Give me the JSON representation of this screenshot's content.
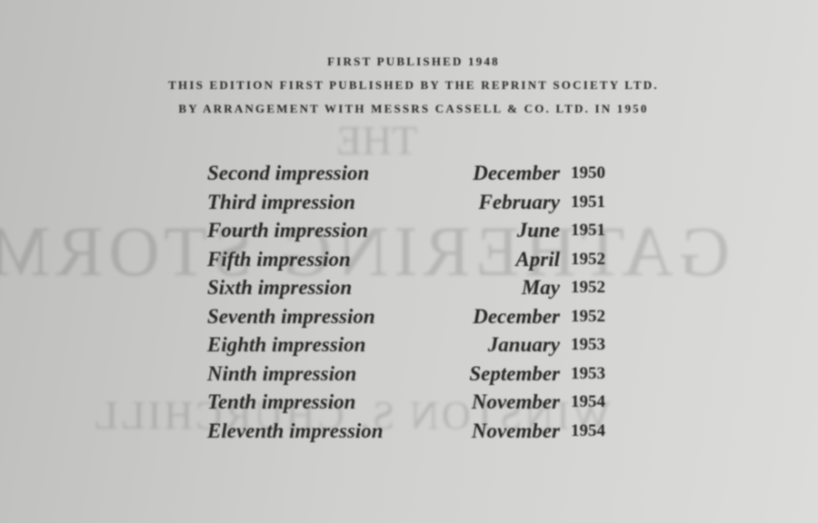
{
  "header": {
    "line1": "First published 1948",
    "line2": "This edition first published by the Reprint Society Ltd.",
    "line3": "by arrangement with Messrs Cassell & Co. Ltd. in 1950"
  },
  "impressions": [
    {
      "label": "Second impression",
      "month": "December",
      "year": "1950"
    },
    {
      "label": "Third impression",
      "month": "February",
      "year": "1951"
    },
    {
      "label": "Fourth impression",
      "month": "June",
      "year": "1951"
    },
    {
      "label": "Fifth impression",
      "month": "April",
      "year": "1952"
    },
    {
      "label": "Sixth impression",
      "month": "May",
      "year": "1952"
    },
    {
      "label": "Seventh impression",
      "month": "December",
      "year": "1952"
    },
    {
      "label": "Eighth impression",
      "month": "January",
      "year": "1953"
    },
    {
      "label": "Ninth impression",
      "month": "September",
      "year": "1953"
    },
    {
      "label": "Tenth impression",
      "month": "November",
      "year": "1954"
    },
    {
      "label": "Eleventh impression",
      "month": "November",
      "year": "1954"
    }
  ],
  "show_through": {
    "line1": "THE",
    "line2": "GATHERING STORM",
    "line3": "WINSTON S. CHURCHILL"
  }
}
